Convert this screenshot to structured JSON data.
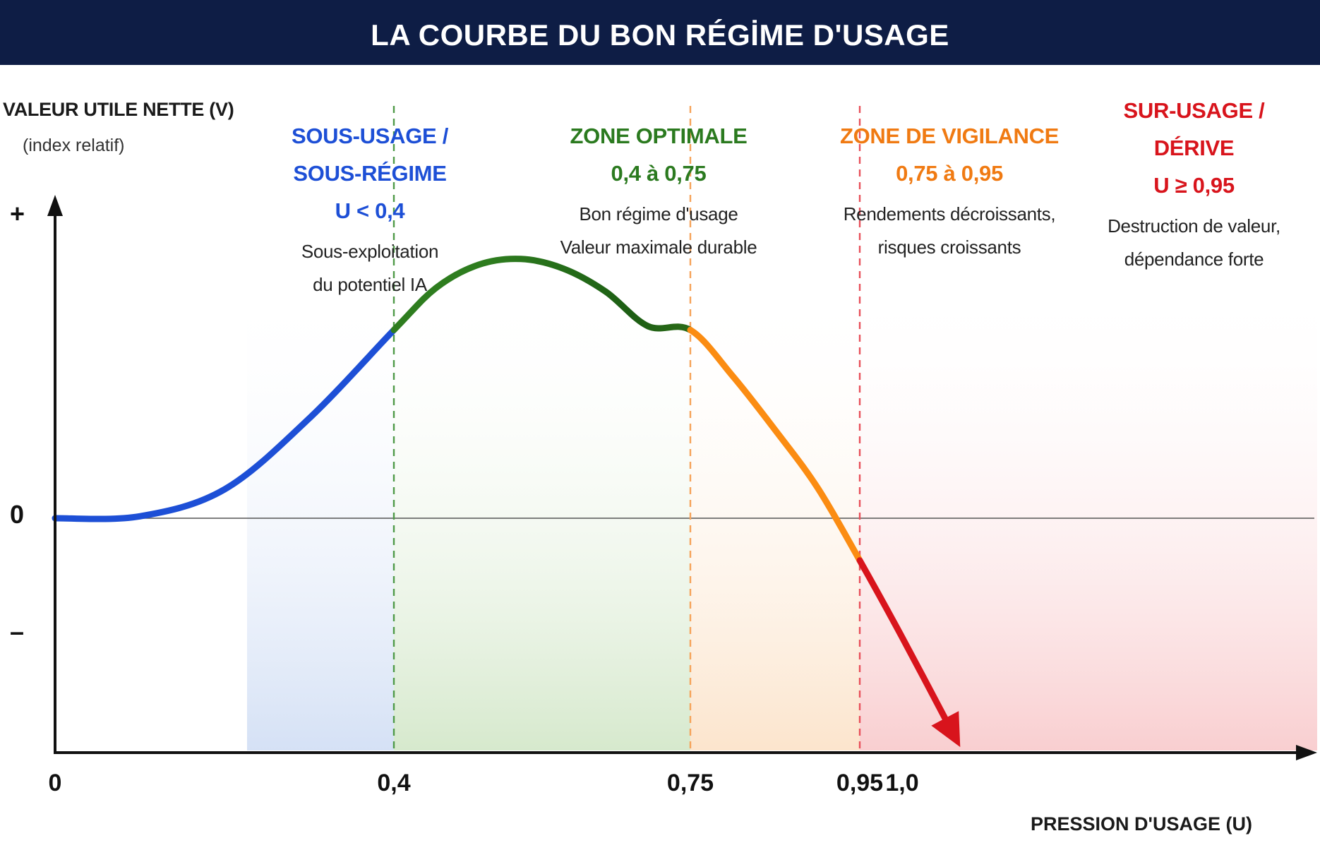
{
  "header": {
    "title": "LA COURBE DU BON RÉGİME D'USAGE"
  },
  "y_axis": {
    "label": "VALEUR UTILE NETTE (V)",
    "sublabel": "(index relatif)",
    "ticks": {
      "plus": "+",
      "zero": "0",
      "minus": "–"
    }
  },
  "zones": [
    {
      "heading": [
        "SOUS-USAGE /",
        "SOUS-RÉGIME",
        "U < 0,4"
      ],
      "desc": [
        "Sous-exploitation",
        "du potentiel IA"
      ],
      "color": "#1d4fd6"
    },
    {
      "heading": [
        "ZONE OPTIMALE",
        "0,4 à 0,75"
      ],
      "desc": [
        "Bon régime d'usage",
        "Valeur maximale durable"
      ],
      "color": "#2b7a1f"
    },
    {
      "heading": [
        "ZONE DE VIGILANCE",
        "0,75 à 0,95"
      ],
      "desc": [
        "Rendements décroissants,",
        "risques croissants"
      ],
      "color": "#f07a12"
    },
    {
      "heading": [
        "SUR-USAGE /",
        "DÉRIVE",
        "U ≥ 0,95"
      ],
      "desc": [
        "Destruction de valeur,",
        "dépendance forte"
      ],
      "color": "#d8141c"
    }
  ],
  "chart_data": {
    "type": "line",
    "title": "LA COURBE DU BON RÉGİME D'USAGE",
    "xlabel": "PRESSION D'USAGE (U)",
    "ylabel": "VALEUR UTILE NETTE (V)",
    "x_ticks": [
      "0",
      "0,4",
      "0,75",
      "0,95",
      "1,0"
    ],
    "x_tick_values": [
      0,
      0.4,
      0.75,
      0.95,
      1.0
    ],
    "thresholds": [
      0.4,
      0.75,
      0.95
    ],
    "colors": {
      "blue": "#1d4fd6",
      "green": "#2e7d1f",
      "dark_green": "#1d5e14",
      "orange": "#fb8c12",
      "red": "#d8141c"
    },
    "series": [
      {
        "x": [
          0,
          0.1,
          0.2,
          0.3,
          0.4,
          0.45,
          0.5,
          0.55,
          0.6,
          0.65,
          0.7,
          0.75,
          0.8,
          0.85,
          0.9,
          0.95,
          1.0,
          1.06
        ],
        "y": [
          0,
          0.01,
          0.15,
          0.52,
          0.98,
          1.2,
          1.32,
          1.35,
          1.3,
          1.18,
          1.0,
          0.98,
          0.74,
          0.46,
          0.16,
          -0.22,
          -0.62,
          -1.12
        ]
      }
    ]
  }
}
